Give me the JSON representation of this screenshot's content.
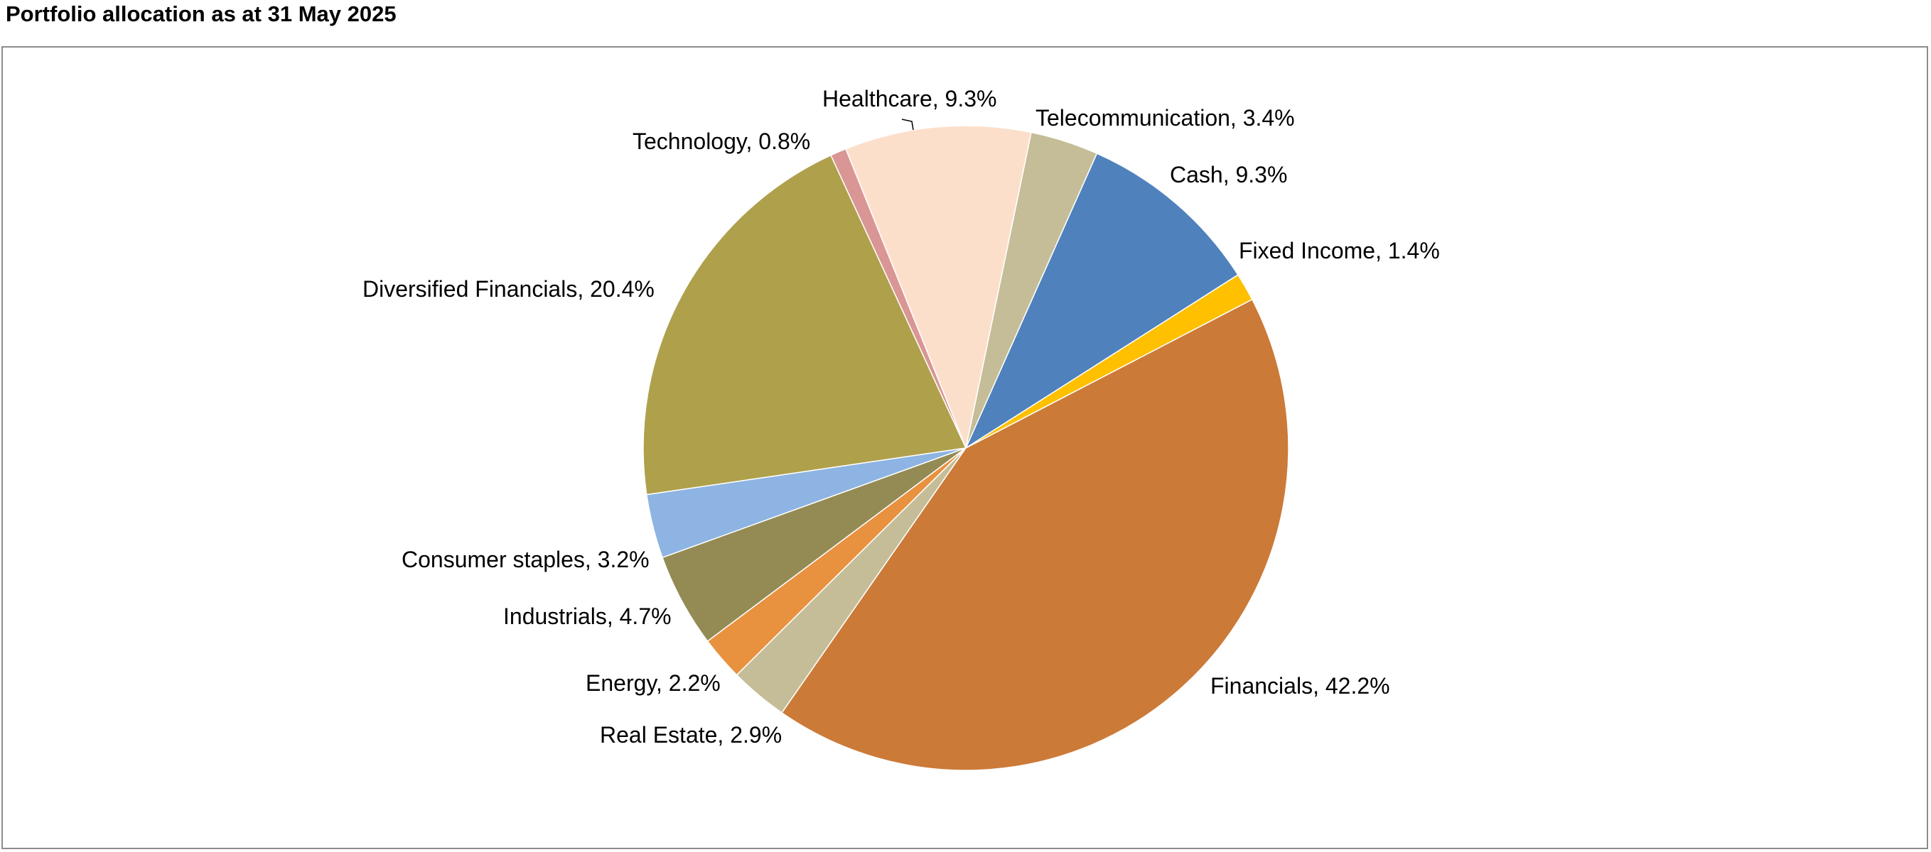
{
  "title": "Portfolio allocation as at 31 May 2025",
  "chart_data": {
    "type": "pie",
    "title": "Portfolio allocation as at 31 May 2025",
    "start_category": "Cash",
    "direction": "counterclockwise",
    "slices": [
      {
        "label": "Cash",
        "value": 9.3,
        "display": "9.3%",
        "color": "#4f81bd"
      },
      {
        "label": "Telecommunication",
        "value": 3.4,
        "display": "3.4%",
        "color": "#c4bd97"
      },
      {
        "label": "Healthcare",
        "value": 9.3,
        "display": "9.3%",
        "color": "#fcdfcb"
      },
      {
        "label": "Technology",
        "value": 0.8,
        "display": "0.8%",
        "color": "#d99694"
      },
      {
        "label": "Diversified Financials",
        "value": 20.4,
        "display": "20.4%",
        "color": "#afa04c"
      },
      {
        "label": "Consumer staples",
        "value": 3.2,
        "display": "3.2%",
        "color": "#8db4e2"
      },
      {
        "label": "Industrials",
        "value": 4.7,
        "display": "4.7%",
        "color": "#948a54"
      },
      {
        "label": "Energy",
        "value": 2.2,
        "display": "2.2%",
        "color": "#e8913f"
      },
      {
        "label": "Real Estate",
        "value": 2.9,
        "display": "2.9%",
        "color": "#c4bd97"
      },
      {
        "label": "Financials",
        "value": 42.2,
        "display": "42.2%",
        "color": "#cc7a38"
      },
      {
        "label": "Fixed Income",
        "value": 1.4,
        "display": "1.4%",
        "color": "#ffc000"
      }
    ],
    "legend": "none",
    "data_labels": "category, percentage outside"
  }
}
